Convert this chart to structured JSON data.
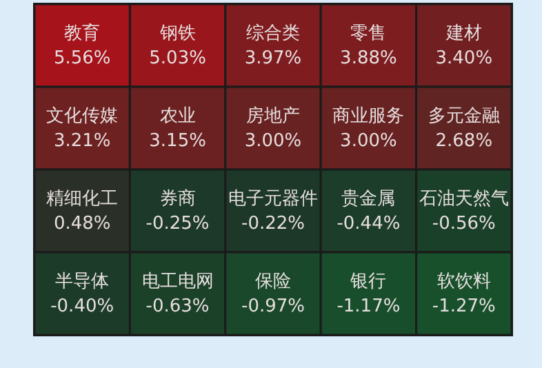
{
  "chart_data": {
    "type": "other",
    "categories": [
      "教育",
      "钢铁",
      "综合类",
      "零售",
      "建材",
      "文化传媒",
      "农业",
      "房地产",
      "商业服务",
      "多元金融",
      "精细化工",
      "券商",
      "电子元器件",
      "贵金属",
      "石油天然气",
      "半导体",
      "电工电网",
      "保险",
      "银行",
      "软饮料"
    ],
    "values": [
      5.56,
      5.03,
      3.97,
      3.88,
      3.4,
      3.21,
      3.15,
      3.0,
      3.0,
      2.68,
      0.48,
      -0.25,
      -0.22,
      -0.44,
      -0.56,
      -0.4,
      -0.63,
      -0.97,
      -1.17,
      -1.27
    ],
    "value_labels": [
      "5.56%",
      "5.03%",
      "3.97%",
      "3.88%",
      "3.40%",
      "3.21%",
      "3.15%",
      "3.00%",
      "3.00%",
      "2.68%",
      "0.48%",
      "-0.25%",
      "-0.22%",
      "-0.44%",
      "-0.56%",
      "-0.40%",
      "-0.63%",
      "-0.97%",
      "-1.17%",
      "-1.27%"
    ]
  }
}
